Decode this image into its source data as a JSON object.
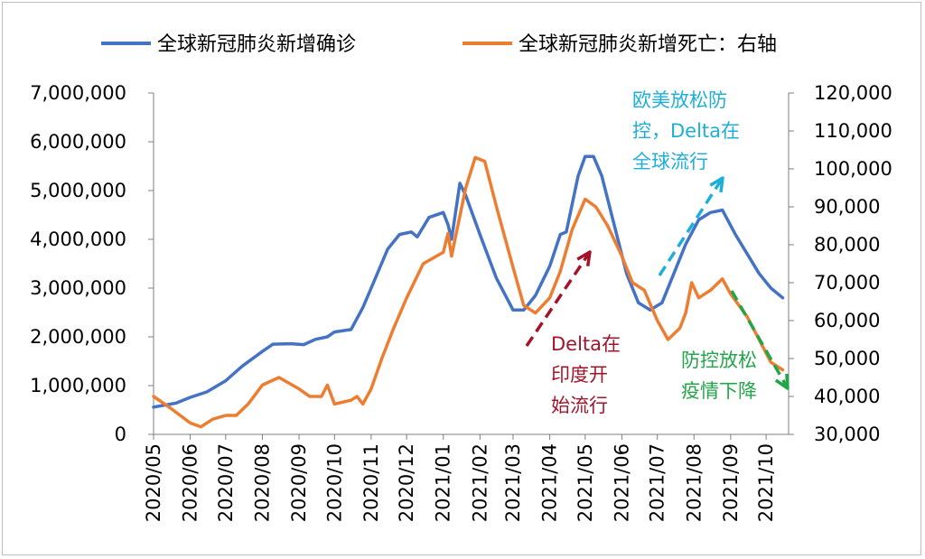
{
  "chart_data": {
    "type": "line",
    "series": [
      {
        "name": "全球新冠肺炎新增确诊",
        "axis": "left",
        "color": "#4472C4",
        "points": [
          [
            "2020/05/01",
            560000
          ],
          [
            "2020/05/20",
            640000
          ],
          [
            "2020/06/01",
            760000
          ],
          [
            "2020/06/15",
            870000
          ],
          [
            "2020/07/01",
            1100000
          ],
          [
            "2020/07/15",
            1400000
          ],
          [
            "2020/08/01",
            1700000
          ],
          [
            "2020/08/10",
            1850000
          ],
          [
            "2020/08/25",
            1860000
          ],
          [
            "2020/09/05",
            1840000
          ],
          [
            "2020/09/15",
            1950000
          ],
          [
            "2020/09/25",
            2000000
          ],
          [
            "2020/10/01",
            2100000
          ],
          [
            "2020/10/15",
            2150000
          ],
          [
            "2020/10/25",
            2600000
          ],
          [
            "2020/11/01",
            3000000
          ],
          [
            "2020/11/15",
            3800000
          ],
          [
            "2020/11/25",
            4100000
          ],
          [
            "2020/12/05",
            4150000
          ],
          [
            "2020/12/10",
            4050000
          ],
          [
            "2020/12/20",
            4450000
          ],
          [
            "2021/01/01",
            4550000
          ],
          [
            "2021/01/05",
            4300000
          ],
          [
            "2021/01/08",
            4000000
          ],
          [
            "2021/01/15",
            5150000
          ],
          [
            "2021/01/20",
            4900000
          ],
          [
            "2021/02/01",
            4100000
          ],
          [
            "2021/02/15",
            3200000
          ],
          [
            "2021/03/01",
            2550000
          ],
          [
            "2021/03/10",
            2550000
          ],
          [
            "2021/03/20",
            2850000
          ],
          [
            "2021/04/01",
            3450000
          ],
          [
            "2021/04/10",
            4100000
          ],
          [
            "2021/04/15",
            4150000
          ],
          [
            "2021/04/25",
            5300000
          ],
          [
            "2021/05/01",
            5700000
          ],
          [
            "2021/05/08",
            5700000
          ],
          [
            "2021/05/15",
            5300000
          ],
          [
            "2021/05/25",
            4350000
          ],
          [
            "2021/06/05",
            3300000
          ],
          [
            "2021/06/15",
            2700000
          ],
          [
            "2021/06/25",
            2550000
          ],
          [
            "2021/07/05",
            2700000
          ],
          [
            "2021/07/15",
            3300000
          ],
          [
            "2021/07/25",
            3900000
          ],
          [
            "2021/08/05",
            4400000
          ],
          [
            "2021/08/15",
            4550000
          ],
          [
            "2021/08/25",
            4600000
          ],
          [
            "2021/09/05",
            4100000
          ],
          [
            "2021/09/15",
            3700000
          ],
          [
            "2021/09/25",
            3300000
          ],
          [
            "2021/10/05",
            3000000
          ],
          [
            "2021/10/15",
            2800000
          ]
        ]
      },
      {
        "name": "全球新冠肺炎新增死亡：右轴",
        "axis": "right",
        "color": "#ED7D31",
        "points": [
          [
            "2020/05/01",
            40000
          ],
          [
            "2020/05/15",
            37000
          ],
          [
            "2020/06/01",
            33000
          ],
          [
            "2020/06/10",
            32000
          ],
          [
            "2020/06/20",
            34000
          ],
          [
            "2020/07/01",
            35000
          ],
          [
            "2020/07/10",
            35000
          ],
          [
            "2020/07/20",
            38000
          ],
          [
            "2020/08/01",
            43000
          ],
          [
            "2020/08/15",
            45000
          ],
          [
            "2020/09/01",
            42000
          ],
          [
            "2020/09/10",
            40000
          ],
          [
            "2020/09/20",
            40000
          ],
          [
            "2020/09/25",
            43000
          ],
          [
            "2020/10/01",
            38000
          ],
          [
            "2020/10/15",
            39000
          ],
          [
            "2020/10/20",
            40000
          ],
          [
            "2020/10/25",
            38000
          ],
          [
            "2020/11/01",
            42000
          ],
          [
            "2020/11/10",
            50000
          ],
          [
            "2020/11/20",
            58000
          ],
          [
            "2020/12/01",
            66000
          ],
          [
            "2020/12/15",
            75000
          ],
          [
            "2021/01/01",
            78000
          ],
          [
            "2021/01/05",
            83000
          ],
          [
            "2021/01/08",
            77000
          ],
          [
            "2021/01/12",
            83000
          ],
          [
            "2021/01/20",
            95000
          ],
          [
            "2021/01/28",
            103000
          ],
          [
            "2021/02/05",
            102000
          ],
          [
            "2021/02/15",
            90000
          ],
          [
            "2021/03/01",
            74000
          ],
          [
            "2021/03/10",
            64000
          ],
          [
            "2021/03/20",
            62000
          ],
          [
            "2021/04/01",
            66000
          ],
          [
            "2021/04/10",
            73000
          ],
          [
            "2021/04/20",
            84000
          ],
          [
            "2021/05/01",
            92000
          ],
          [
            "2021/05/10",
            90000
          ],
          [
            "2021/05/20",
            85000
          ],
          [
            "2021/06/01",
            77000
          ],
          [
            "2021/06/10",
            70000
          ],
          [
            "2021/06/20",
            68000
          ],
          [
            "2021/07/01",
            60000
          ],
          [
            "2021/07/10",
            55000
          ],
          [
            "2021/07/20",
            58000
          ],
          [
            "2021/07/25",
            62000
          ],
          [
            "2021/07/30",
            70000
          ],
          [
            "2021/08/05",
            66000
          ],
          [
            "2021/08/15",
            68000
          ],
          [
            "2021/08/25",
            71000
          ],
          [
            "2021/09/01",
            67000
          ],
          [
            "2021/09/15",
            61000
          ],
          [
            "2021/09/25",
            55000
          ],
          [
            "2021/10/05",
            49000
          ],
          [
            "2021/10/15",
            47000
          ]
        ]
      }
    ],
    "x_ticks": [
      "2020/05",
      "2020/06",
      "2020/07",
      "2020/08",
      "2020/09",
      "2020/10",
      "2020/11",
      "2020/12",
      "2021/01",
      "2021/02",
      "2021/03",
      "2021/04",
      "2021/05",
      "2021/06",
      "2021/07",
      "2021/08",
      "2021/09",
      "2021/10"
    ],
    "y_left": {
      "ylim": [
        0,
        7000000
      ],
      "ticks": [
        "0",
        "1,000,000",
        "2,000,000",
        "3,000,000",
        "4,000,000",
        "5,000,000",
        "6,000,000",
        "7,000,000"
      ]
    },
    "y_right": {
      "ylim": [
        30000,
        120000
      ],
      "ticks": [
        "30,000",
        "40,000",
        "50,000",
        "60,000",
        "70,000",
        "80,000",
        "90,000",
        "100,000",
        "110,000",
        "120,000"
      ]
    },
    "legend": "top",
    "grid": false,
    "annotations": [
      {
        "text": [
          "Delta在",
          "印度开",
          "始流行"
        ],
        "color": "#A3142B",
        "arrow": "up-right"
      },
      {
        "text": [
          "欧美放松防",
          "控，Delta在",
          "全球流行"
        ],
        "color": "#1FAEDC",
        "arrow": "up-right"
      },
      {
        "text": [
          "防控放松",
          "疫情下降"
        ],
        "color": "#23A54A",
        "arrow": "down-right"
      }
    ]
  }
}
